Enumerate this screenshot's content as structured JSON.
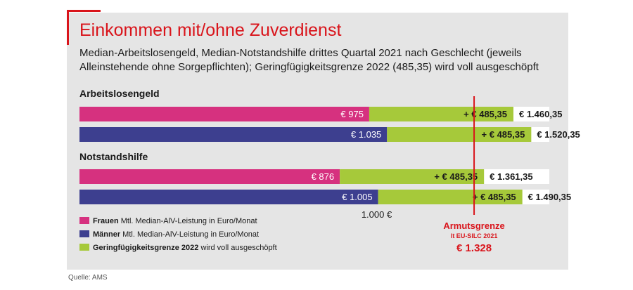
{
  "header": {
    "title": "Einkommen mit/ohne Zuverdienst",
    "subtitle": "Median-Arbeitslosengeld, Median-Notstandshilfe drittes Quartal 2021 nach Geschlecht (jeweils Alleinstehende ohne Sorgepflichten); Geringfügigkeitsgrenze 2022 (485,35) wird voll ausgeschöpft"
  },
  "chart_data": {
    "type": "bar",
    "orientation": "horizontal",
    "stacked": true,
    "xlim": [
      0,
      1600
    ],
    "groups": [
      {
        "label": "Arbeitslosengeld",
        "rows": [
          {
            "series": "Frauen",
            "base": 975,
            "base_label": "€ 975",
            "add": 485.35,
            "add_label": "+ € 485,35",
            "total_label": "€ 1.460,35"
          },
          {
            "series": "Männer",
            "base": 1035,
            "base_label": "€ 1.035",
            "add": 485.35,
            "add_label": "+ € 485,35",
            "total_label": "€ 1.520,35"
          }
        ]
      },
      {
        "label": "Notstandshilfe",
        "rows": [
          {
            "series": "Frauen",
            "base": 876,
            "base_label": "€ 876",
            "add": 485.35,
            "add_label": "+ € 485,35",
            "total_label": "€ 1.361,35"
          },
          {
            "series": "Männer",
            "base": 1005,
            "base_label": "€ 1.005",
            "add": 485.35,
            "add_label": "+ € 485,35",
            "total_label": "€ 1.490,35"
          }
        ]
      }
    ],
    "gridline": {
      "value": 1000,
      "label": "1.000 €"
    },
    "threshold": {
      "value": 1328,
      "label": "Armutsgrenze",
      "sublabel": "lt EU-SILC 2021",
      "value_label": "€ 1.328"
    },
    "legend": [
      {
        "bold": "Frauen",
        "text": "Mtl. Median-AlV-Leistung in Euro/Monat",
        "color": "#d6317f"
      },
      {
        "bold": "Männer",
        "text": "Mtl. Median-AlV-Leistung in Euro/Monat",
        "color": "#3d3f8f"
      },
      {
        "bold": "Geringfügigkeitsgrenze 2022",
        "text": "wird voll ausgeschöpft",
        "color": "#a6c93a"
      }
    ]
  },
  "colors": {
    "frauen": "#d6317f",
    "maenner": "#3d3f8f",
    "add": "#a6c93a",
    "threshold": "#d9141b",
    "track": "#ffffff"
  },
  "footer": {
    "source": "Quelle: AMS"
  }
}
